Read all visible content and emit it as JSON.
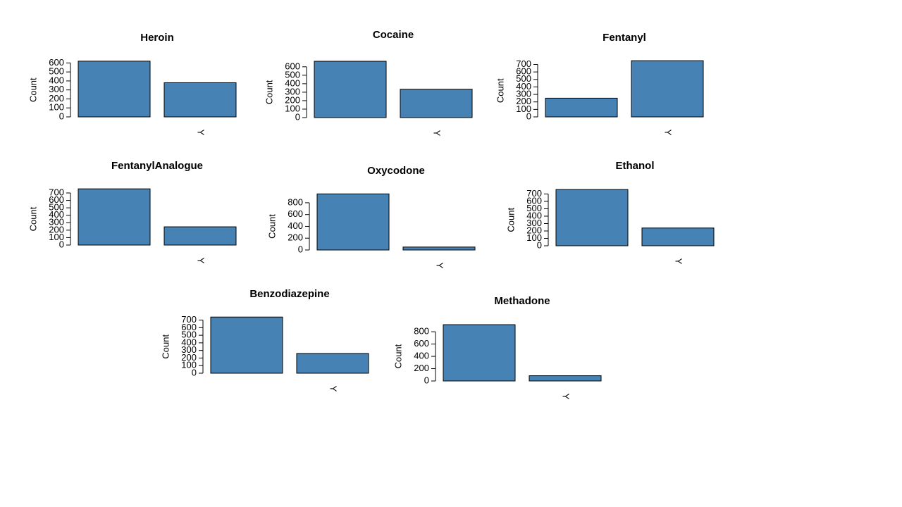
{
  "chart_data": [
    {
      "type": "bar",
      "title": "Heroin",
      "y_label": "Count",
      "categories": [
        null,
        "Y"
      ],
      "values": [
        620,
        380
      ],
      "color": "#4682b4",
      "ylim": [
        0,
        650
      ],
      "yticks": [
        0,
        100,
        200,
        300,
        400,
        500,
        600
      ]
    },
    {
      "type": "bar",
      "title": "Cocaine",
      "y_label": "Count",
      "categories": [
        null,
        "Y"
      ],
      "values": [
        665,
        335
      ],
      "color": "#4682b4",
      "ylim": [
        0,
        690
      ],
      "yticks": [
        0,
        100,
        200,
        300,
        400,
        500,
        600
      ]
    },
    {
      "type": "bar",
      "title": "Fentanyl",
      "y_label": "Count",
      "categories": [
        null,
        "Y"
      ],
      "values": [
        250,
        750
      ],
      "color": "#4682b4",
      "ylim": [
        0,
        780
      ],
      "yticks": [
        0,
        100,
        200,
        300,
        400,
        500,
        600,
        700
      ]
    },
    {
      "type": "bar",
      "title": "FentanylAnalogue",
      "y_label": "Count",
      "categories": [
        null,
        "Y"
      ],
      "values": [
        755,
        245
      ],
      "color": "#4682b4",
      "ylim": [
        0,
        785
      ],
      "yticks": [
        0,
        100,
        200,
        300,
        400,
        500,
        600,
        700
      ]
    },
    {
      "type": "bar",
      "title": "Oxycodone",
      "y_label": "Count",
      "categories": [
        null,
        "Y"
      ],
      "values": [
        950,
        50
      ],
      "color": "#4682b4",
      "ylim": [
        0,
        990
      ],
      "yticks": [
        0,
        200,
        400,
        600,
        800
      ]
    },
    {
      "type": "bar",
      "title": "Ethanol",
      "y_label": "Count",
      "categories": [
        null,
        "Y"
      ],
      "values": [
        760,
        240
      ],
      "color": "#4682b4",
      "ylim": [
        0,
        790
      ],
      "yticks": [
        0,
        100,
        200,
        300,
        400,
        500,
        600,
        700
      ]
    },
    {
      "type": "bar",
      "title": "Benzodiazepine",
      "y_label": "Count",
      "categories": [
        null,
        "Y"
      ],
      "values": [
        740,
        260
      ],
      "color": "#4682b4",
      "ylim": [
        0,
        770
      ],
      "yticks": [
        0,
        100,
        200,
        300,
        400,
        500,
        600,
        700
      ]
    },
    {
      "type": "bar",
      "title": "Methadone",
      "y_label": "Count",
      "categories": [
        null,
        "Y"
      ],
      "values": [
        915,
        85
      ],
      "color": "#4682b4",
      "ylim": [
        0,
        950
      ],
      "yticks": [
        0,
        200,
        400,
        600,
        800
      ]
    }
  ]
}
